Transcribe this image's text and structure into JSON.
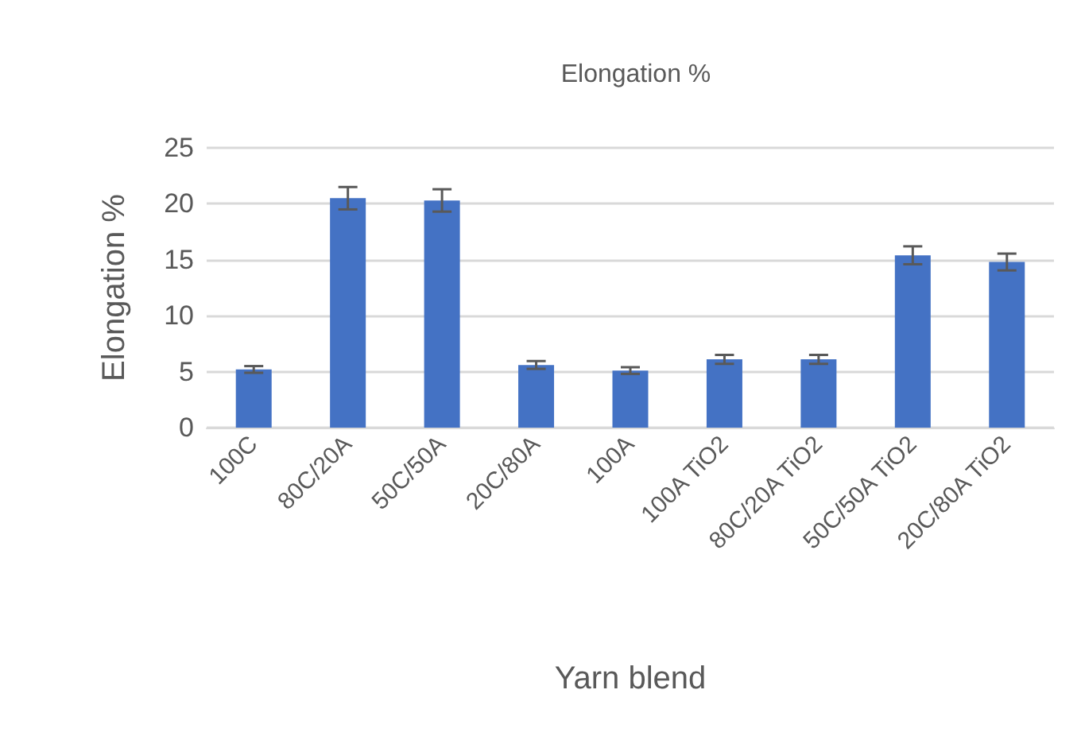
{
  "chart_data": {
    "type": "bar",
    "title": "Elongation %",
    "xlabel": "Yarn blend",
    "ylabel": "Elongation %",
    "categories": [
      "100C",
      "80C/20A",
      "50C/50A",
      "20C/80A",
      "100A",
      "100A TiO2",
      "80C/20A TiO2",
      "50C/50A TiO2",
      "20C/80A TiO2"
    ],
    "values": [
      5.2,
      20.5,
      20.3,
      5.6,
      5.1,
      6.1,
      6.1,
      15.4,
      14.8
    ],
    "errors": [
      0.3,
      1.0,
      1.0,
      0.35,
      0.3,
      0.4,
      0.4,
      0.8,
      0.75
    ],
    "color": "#4472c4",
    "ylim": [
      0,
      25
    ],
    "yticks": [
      0,
      5,
      10,
      15,
      20,
      25
    ],
    "grid": "y"
  }
}
